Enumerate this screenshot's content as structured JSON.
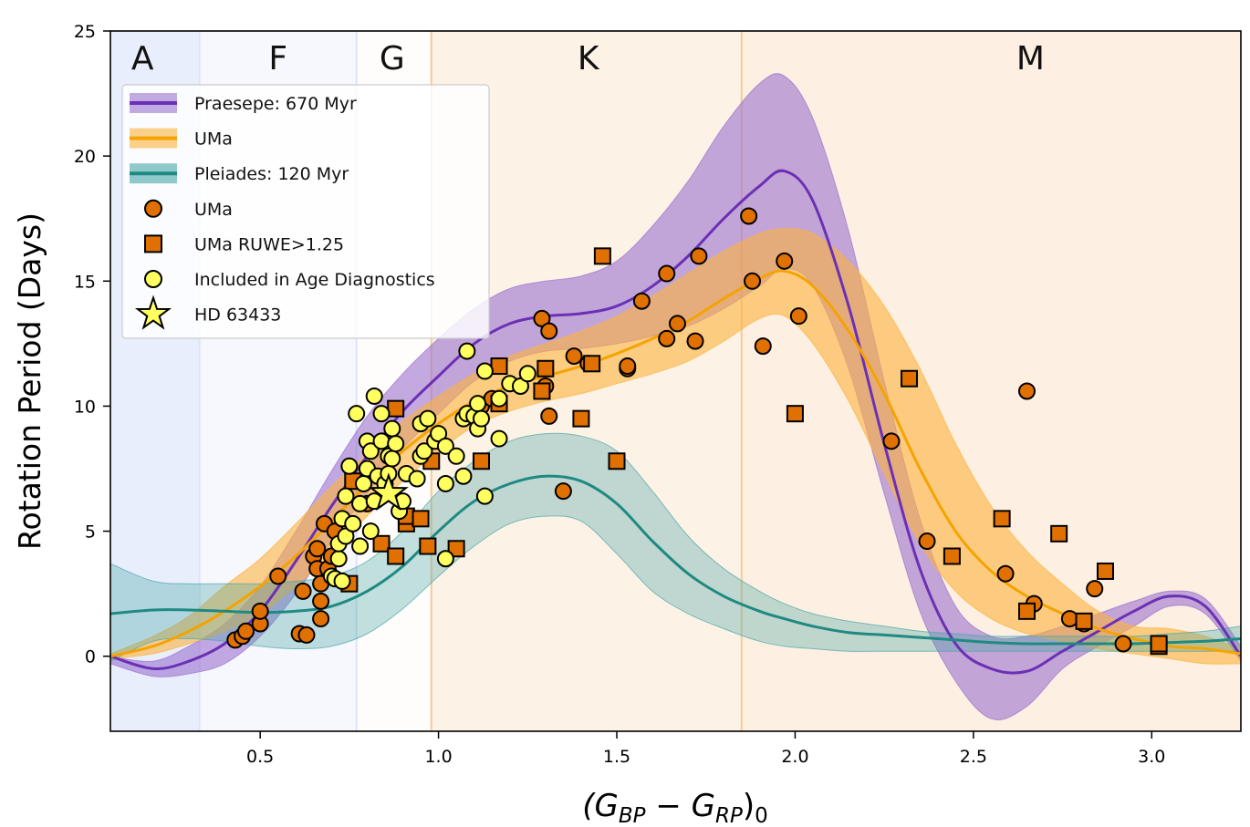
{
  "chart_data": {
    "type": "scatter",
    "xlabel": "(G_BP − G_RP)_0",
    "ylabel": "Rotation Period (Days)",
    "xlim": [
      0.08,
      3.25
    ],
    "ylim": [
      -3,
      25
    ],
    "xticks": [
      0.5,
      1.0,
      1.5,
      2.0,
      2.5,
      3.0
    ],
    "xtick_labels": [
      "0.5",
      "1.0",
      "1.5",
      "2.0",
      "2.5",
      "3.0"
    ],
    "yticks": [
      0,
      5,
      10,
      15,
      20,
      25
    ],
    "ytick_labels": [
      "0",
      "5",
      "10",
      "15",
      "20",
      "25"
    ],
    "legend_position": "upper-left",
    "spectral_types": [
      {
        "label": "A",
        "x0": 0.08,
        "x1": 0.33,
        "label_x": 0.17,
        "color": "#e9eefc"
      },
      {
        "label": "F",
        "x0": 0.33,
        "x1": 0.77,
        "label_x": 0.55,
        "color": "#f7f8fe"
      },
      {
        "label": "G",
        "x0": 0.77,
        "x1": 0.98,
        "label_x": 0.87,
        "color": "#fffdfb"
      },
      {
        "label": "K",
        "x0": 0.98,
        "x1": 1.85,
        "label_x": 1.42,
        "color": "#fdf2e6"
      },
      {
        "label": "M",
        "x0": 1.85,
        "x1": 3.25,
        "label_x": 2.66,
        "color": "#fdf0e2"
      }
    ],
    "colors": {
      "praesepe": "#6b30b5",
      "praesepe_band": "#9b72cf",
      "uma": "#f5a300",
      "uma_band": "#fbb33d",
      "pleiades": "#1e8a82",
      "pleiades_band": "#4aa6a6",
      "marker_orange": "#e07000",
      "marker_yellow": "#ffff60"
    },
    "x_curve": [
      0.08,
      0.2,
      0.3,
      0.4,
      0.5,
      0.6,
      0.7,
      0.8,
      0.9,
      1.0,
      1.1,
      1.2,
      1.3,
      1.4,
      1.5,
      1.6,
      1.7,
      1.8,
      1.9,
      1.97,
      2.05,
      2.15,
      2.25,
      2.35,
      2.45,
      2.55,
      2.65,
      2.75,
      2.85,
      2.95,
      3.05,
      3.15,
      3.25
    ],
    "series": [
      {
        "name": "Praesepe: 670 Myr",
        "type": "line",
        "y": [
          0,
          -0.5,
          -0.2,
          0.5,
          1.8,
          3.8,
          6.0,
          8.0,
          9.8,
          11.2,
          12.5,
          13.3,
          13.6,
          13.7,
          14.0,
          14.8,
          16.0,
          17.5,
          18.8,
          19.4,
          18.2,
          14.0,
          8.5,
          3.5,
          0.5,
          -0.5,
          -0.6,
          0.2,
          1.0,
          1.8,
          2.4,
          2.0,
          0
        ],
        "upper": [
          0,
          -0.2,
          0.4,
          1.3,
          2.8,
          5.0,
          7.4,
          9.6,
          11.3,
          12.7,
          13.9,
          14.7,
          15.0,
          15.2,
          15.8,
          17.2,
          19.0,
          21.2,
          22.9,
          23.2,
          21.5,
          17.0,
          11.0,
          5.5,
          2.0,
          0.8,
          0.8,
          1.2,
          1.7,
          2.2,
          2.6,
          2.3,
          0.4
        ],
        "lower": [
          -0.3,
          -0.8,
          -0.7,
          -0.3,
          0.8,
          2.5,
          4.6,
          6.5,
          8.3,
          9.7,
          11.0,
          11.8,
          12.2,
          12.3,
          12.5,
          12.8,
          13.2,
          13.9,
          14.8,
          15.5,
          14.8,
          11.5,
          6.5,
          1.8,
          -1.0,
          -2.5,
          -2.0,
          -0.5,
          0.4,
          1.2,
          2.0,
          1.7,
          -0.2
        ]
      },
      {
        "name": "UMa",
        "type": "line",
        "y": [
          0,
          0.4,
          1.0,
          1.8,
          2.8,
          4.0,
          5.4,
          6.9,
          8.2,
          9.3,
          10.2,
          10.8,
          11.2,
          11.6,
          12.1,
          12.7,
          13.4,
          14.3,
          15.1,
          15.4,
          14.8,
          13.0,
          10.5,
          7.5,
          5.0,
          3.4,
          2.4,
          1.7,
          1.1,
          0.7,
          0.4,
          0.3,
          0.1
        ],
        "upper": [
          0.1,
          0.8,
          1.6,
          2.8,
          3.9,
          5.3,
          6.8,
          8.1,
          9.4,
          10.4,
          11.3,
          12.0,
          12.5,
          13.0,
          13.6,
          14.4,
          15.3,
          16.2,
          16.9,
          17.1,
          16.9,
          15.8,
          14.0,
          11.5,
          8.5,
          6.0,
          4.2,
          2.9,
          1.8,
          1.2,
          1.1,
          0.8,
          0.3
        ],
        "lower": [
          -0.1,
          0.1,
          0.5,
          1.0,
          1.7,
          2.8,
          4.1,
          5.6,
          7.0,
          8.2,
          9.2,
          9.8,
          10.2,
          10.5,
          10.9,
          11.3,
          11.8,
          12.6,
          13.5,
          13.6,
          12.5,
          10.2,
          7.3,
          4.5,
          2.6,
          1.5,
          0.9,
          0.6,
          0.3,
          0.1,
          -0.1,
          -0.3,
          -0.3
        ]
      },
      {
        "name": "Pleiades: 120 Myr",
        "type": "line",
        "y": [
          1.7,
          1.85,
          1.85,
          1.8,
          1.75,
          1.8,
          2.0,
          2.6,
          3.6,
          5.0,
          6.2,
          6.9,
          7.2,
          7.0,
          6.1,
          4.6,
          3.3,
          2.4,
          1.8,
          1.5,
          1.2,
          0.95,
          0.85,
          0.75,
          0.65,
          0.55,
          0.5,
          0.5,
          0.5,
          0.5,
          0.55,
          0.6,
          0.7
        ],
        "upper": [
          3.7,
          3.0,
          2.9,
          2.9,
          2.9,
          3.0,
          3.2,
          3.8,
          5.0,
          6.6,
          7.8,
          8.6,
          8.9,
          8.8,
          8.2,
          6.6,
          4.8,
          3.5,
          2.6,
          2.1,
          1.7,
          1.4,
          1.2,
          1.0,
          0.9,
          0.8,
          0.8,
          0.8,
          0.8,
          0.8,
          0.9,
          1.0,
          1.2
        ],
        "lower": [
          -0.2,
          0.6,
          0.7,
          0.6,
          0.4,
          0.3,
          0.4,
          0.9,
          1.9,
          3.2,
          4.4,
          5.3,
          5.6,
          5.4,
          4.1,
          2.6,
          1.7,
          1.1,
          0.6,
          0.4,
          0.3,
          0.2,
          0.2,
          0.2,
          0.2,
          0.2,
          0.2,
          0.2,
          0.2,
          0.2,
          0.2,
          0.2,
          0.2
        ]
      }
    ],
    "uma_points": [
      [
        0.43,
        0.65
      ],
      [
        0.45,
        0.8
      ],
      [
        0.46,
        1.0
      ],
      [
        0.5,
        1.3
      ],
      [
        0.5,
        1.8
      ],
      [
        0.55,
        3.2
      ],
      [
        0.61,
        0.9
      ],
      [
        0.62,
        2.6
      ],
      [
        0.63,
        0.85
      ],
      [
        0.65,
        4.0
      ],
      [
        0.66,
        3.5
      ],
      [
        0.66,
        4.3
      ],
      [
        0.67,
        1.5
      ],
      [
        0.67,
        2.2
      ],
      [
        0.67,
        2.9
      ],
      [
        0.68,
        5.3
      ],
      [
        0.69,
        3.5
      ],
      [
        0.7,
        4.0
      ],
      [
        0.71,
        5.0
      ],
      [
        0.8,
        6.1
      ],
      [
        1.12,
        10.0
      ],
      [
        1.15,
        10.3
      ],
      [
        1.29,
        13.5
      ],
      [
        1.3,
        10.8
      ],
      [
        1.31,
        13.0
      ],
      [
        1.31,
        9.6
      ],
      [
        1.35,
        6.6
      ],
      [
        1.38,
        12.0
      ],
      [
        1.42,
        11.7
      ],
      [
        1.53,
        11.5
      ],
      [
        1.53,
        11.6
      ],
      [
        1.57,
        14.2
      ],
      [
        1.64,
        12.7
      ],
      [
        1.64,
        15.3
      ],
      [
        1.67,
        13.3
      ],
      [
        1.72,
        12.6
      ],
      [
        1.73,
        16.0
      ],
      [
        1.87,
        17.6
      ],
      [
        1.88,
        15.0
      ],
      [
        1.91,
        12.4
      ],
      [
        1.97,
        15.8
      ],
      [
        2.01,
        13.6
      ],
      [
        2.27,
        8.6
      ],
      [
        2.37,
        4.6
      ],
      [
        2.59,
        3.3
      ],
      [
        2.65,
        10.6
      ],
      [
        2.67,
        2.1
      ],
      [
        2.77,
        1.5
      ],
      [
        2.81,
        1.3
      ],
      [
        2.84,
        2.7
      ],
      [
        2.92,
        0.5
      ]
    ],
    "uma_ruwe_points": [
      [
        0.75,
        2.9
      ],
      [
        0.76,
        7.0
      ],
      [
        0.84,
        4.5
      ],
      [
        0.88,
        9.9
      ],
      [
        0.88,
        4.0
      ],
      [
        0.91,
        5.3
      ],
      [
        0.91,
        5.6
      ],
      [
        0.95,
        5.5
      ],
      [
        0.97,
        4.4
      ],
      [
        0.98,
        7.8
      ],
      [
        1.05,
        4.3
      ],
      [
        1.12,
        7.8
      ],
      [
        1.17,
        11.6
      ],
      [
        1.17,
        10.1
      ],
      [
        1.29,
        10.6
      ],
      [
        1.3,
        11.5
      ],
      [
        1.4,
        9.5
      ],
      [
        1.43,
        11.7
      ],
      [
        1.46,
        16.0
      ],
      [
        1.5,
        7.8
      ],
      [
        2.0,
        9.7
      ],
      [
        2.32,
        11.1
      ],
      [
        2.44,
        4.0
      ],
      [
        2.58,
        5.5
      ],
      [
        2.65,
        1.8
      ],
      [
        2.74,
        4.9
      ],
      [
        2.81,
        1.4
      ],
      [
        2.87,
        3.4
      ],
      [
        3.02,
        0.4
      ],
      [
        3.02,
        0.5
      ]
    ],
    "age_points": [
      [
        0.7,
        3.2
      ],
      [
        0.71,
        3.1
      ],
      [
        0.72,
        3.9
      ],
      [
        0.72,
        4.5
      ],
      [
        0.73,
        3.0
      ],
      [
        0.73,
        5.5
      ],
      [
        0.74,
        6.4
      ],
      [
        0.74,
        4.8
      ],
      [
        0.75,
        7.6
      ],
      [
        0.76,
        5.3
      ],
      [
        0.77,
        9.7
      ],
      [
        0.78,
        4.4
      ],
      [
        0.78,
        6.1
      ],
      [
        0.79,
        6.9
      ],
      [
        0.8,
        7.5
      ],
      [
        0.8,
        8.6
      ],
      [
        0.81,
        8.2
      ],
      [
        0.81,
        5.0
      ],
      [
        0.82,
        6.2
      ],
      [
        0.82,
        10.4
      ],
      [
        0.83,
        7.2
      ],
      [
        0.84,
        8.6
      ],
      [
        0.84,
        9.7
      ],
      [
        0.85,
        6.9
      ],
      [
        0.86,
        7.3
      ],
      [
        0.86,
        8.0
      ],
      [
        0.87,
        7.9
      ],
      [
        0.87,
        9.1
      ],
      [
        0.88,
        8.5
      ],
      [
        0.89,
        5.8
      ],
      [
        0.9,
        6.2
      ],
      [
        0.91,
        7.3
      ],
      [
        0.94,
        7.1
      ],
      [
        0.95,
        8.0
      ],
      [
        0.95,
        9.3
      ],
      [
        0.96,
        8.2
      ],
      [
        0.97,
        9.5
      ],
      [
        0.99,
        8.6
      ],
      [
        1.0,
        8.9
      ],
      [
        1.02,
        6.9
      ],
      [
        1.02,
        8.4
      ],
      [
        1.05,
        8.0
      ],
      [
        1.07,
        7.2
      ],
      [
        1.07,
        9.5
      ],
      [
        1.08,
        9.7
      ],
      [
        1.08,
        12.2
      ],
      [
        1.1,
        9.6
      ],
      [
        1.11,
        9.1
      ],
      [
        1.11,
        10.1
      ],
      [
        1.12,
        9.5
      ],
      [
        1.13,
        11.4
      ],
      [
        1.13,
        6.4
      ],
      [
        1.17,
        8.7
      ],
      [
        1.17,
        10.3
      ],
      [
        1.2,
        10.9
      ],
      [
        1.23,
        10.8
      ],
      [
        1.25,
        11.3
      ],
      [
        1.02,
        3.9
      ]
    ],
    "highlight_star": {
      "name": "HD 63433",
      "x": 0.86,
      "y": 6.5
    },
    "legend": [
      {
        "label": "Praesepe: 670 Myr",
        "kind": "line",
        "color": "#6b30b5"
      },
      {
        "label": "UMa",
        "kind": "line",
        "color": "#f5a300"
      },
      {
        "label": "Pleiades: 120 Myr",
        "kind": "line",
        "color": "#1e8a82"
      },
      {
        "label": "UMa",
        "kind": "circle",
        "color": "#e07000"
      },
      {
        "label": "UMa RUWE>1.25",
        "kind": "square",
        "color": "#e07000"
      },
      {
        "label": "Included in Age Diagnostics",
        "kind": "circle",
        "color": "#ffff60"
      },
      {
        "label": "HD 63433",
        "kind": "star",
        "color": "#ffff60"
      }
    ]
  }
}
